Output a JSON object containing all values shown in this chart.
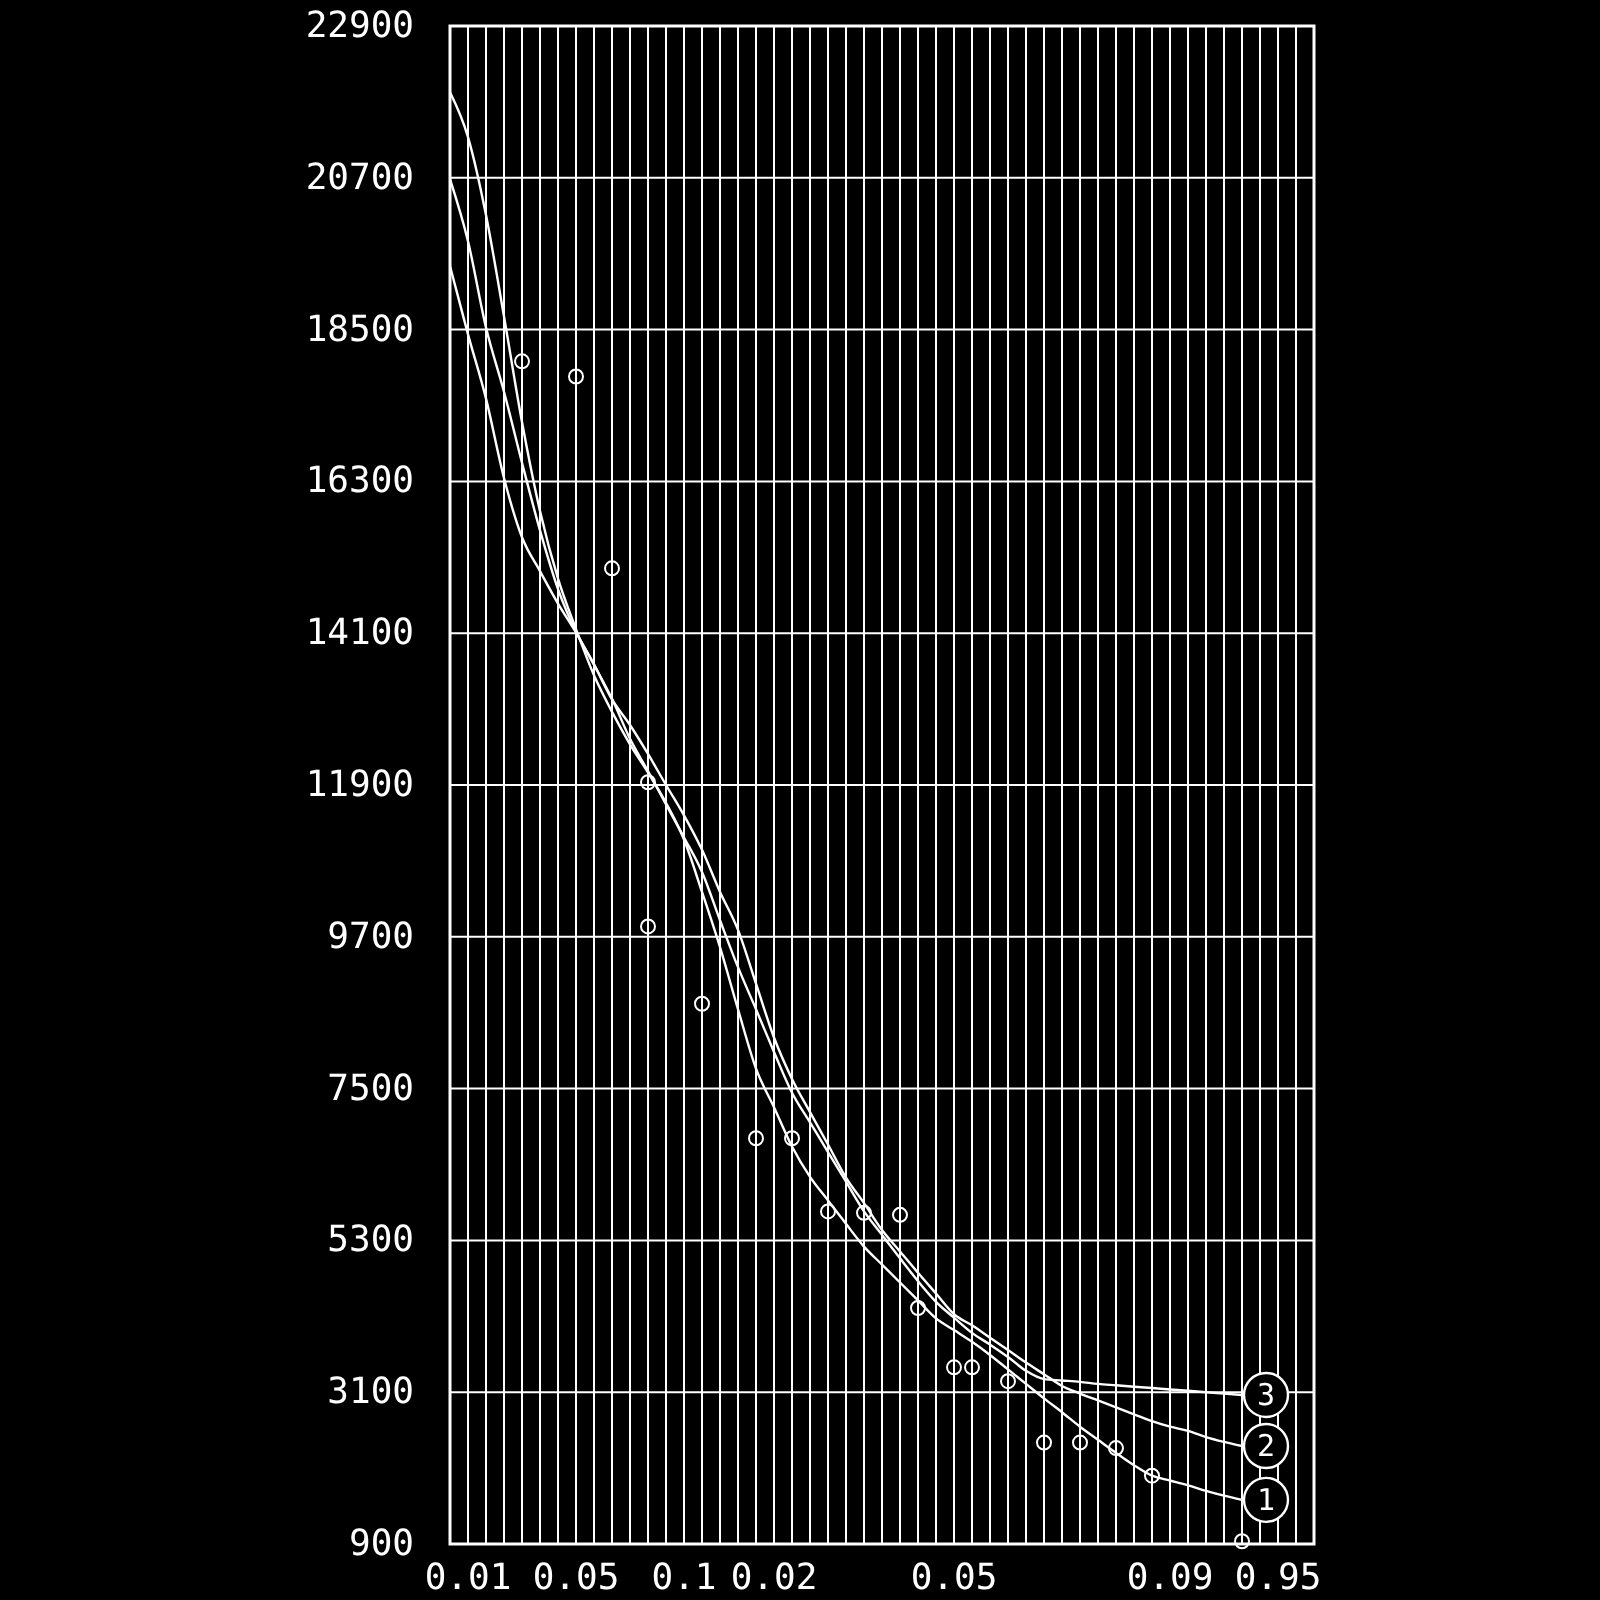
{
  "chart_data": {
    "type": "line",
    "ylim": [
      900,
      22900
    ],
    "yticks": [
      900,
      3100,
      5300,
      7500,
      9700,
      11900,
      14100,
      16300,
      18500,
      20700,
      22900
    ],
    "categories": [
      null,
      "0.01",
      null,
      null,
      null,
      null,
      null,
      "0.05",
      null,
      null,
      null,
      null,
      null,
      "0.1",
      null,
      null,
      null,
      null,
      "0.02",
      null,
      null,
      null,
      null,
      null,
      null,
      null,
      null,
      null,
      "0.05",
      null,
      null,
      null,
      null,
      null,
      null,
      null,
      null,
      null,
      null,
      null,
      "0.09",
      null,
      null,
      null,
      null,
      null,
      "0.95",
      null,
      null
    ],
    "grid": true,
    "line_style": "solid",
    "legend": "right",
    "series": [
      {
        "name": "1",
        "color": "#ffffff",
        "values": [
          21940,
          21290,
          20160,
          18690,
          17160,
          15870,
          14890,
          14160,
          13490,
          12960,
          12490,
          12080,
          11640,
          11110,
          10350,
          9550,
          8650,
          7790,
          7230,
          6660,
          6220,
          5880,
          5540,
          5210,
          4950,
          4690,
          4430,
          4170,
          4000,
          3830,
          3640,
          3430,
          3220,
          3010,
          2810,
          2600,
          2410,
          2220,
          2040,
          1890,
          1820,
          1750,
          1670,
          1600,
          1540,
          null,
          null,
          null,
          null
        ]
      },
      {
        "name": "2",
        "color": "#ffffff",
        "values": [
          20680,
          19780,
          18530,
          17600,
          16570,
          15590,
          14740,
          14120,
          13650,
          13140,
          12770,
          12350,
          11900,
          11460,
          10960,
          10350,
          9800,
          9020,
          8240,
          7640,
          7160,
          6690,
          6210,
          5840,
          5450,
          5140,
          4830,
          4530,
          4230,
          4070,
          3890,
          3710,
          3530,
          3360,
          3190,
          3080,
          2980,
          2880,
          2780,
          2680,
          2600,
          2540,
          2450,
          2380,
          2320,
          null,
          null,
          null,
          null
        ]
      },
      {
        "name": "3",
        "color": "#ffffff",
        "values": [
          19420,
          18430,
          17500,
          16350,
          15490,
          15000,
          14530,
          14110,
          13640,
          13150,
          12570,
          12100,
          11620,
          11140,
          10640,
          9940,
          9260,
          8650,
          8030,
          7440,
          7010,
          6580,
          6150,
          5720,
          5380,
          5040,
          4710,
          4410,
          4180,
          3960,
          3790,
          3610,
          3410,
          3290,
          3270,
          3250,
          3220,
          3200,
          3180,
          3160,
          3140,
          3120,
          3100,
          3080,
          3060,
          null,
          null,
          null,
          null
        ]
      },
      {
        "type": "scatter",
        "color": "#ffffff",
        "marker": "circle",
        "values": [
          null,
          null,
          null,
          null,
          18040,
          null,
          null,
          17820,
          null,
          15040,
          null,
          9850,
          null,
          null,
          8730,
          null,
          null,
          6780,
          null,
          6780,
          null,
          5720,
          null,
          5700,
          null,
          5670,
          4320,
          null,
          3460,
          3460,
          null,
          3260,
          null,
          2370,
          null,
          2370,
          null,
          2290,
          null,
          1890,
          null,
          null,
          null,
          null,
          940,
          null,
          null,
          null,
          null
        ]
      },
      {
        "type": "scatter",
        "color": "#ffffff",
        "marker": "circle",
        "values": [
          null,
          null,
          null,
          null,
          null,
          null,
          null,
          null,
          null,
          null,
          null,
          11940,
          null,
          null,
          null,
          null,
          null,
          null,
          null,
          null,
          null,
          null,
          null,
          null,
          null,
          null,
          null,
          null,
          null,
          null,
          null,
          null,
          null,
          null,
          null,
          null,
          null,
          null,
          null,
          null,
          null,
          null,
          null,
          null,
          null,
          null,
          null,
          null,
          null
        ]
      }
    ]
  }
}
